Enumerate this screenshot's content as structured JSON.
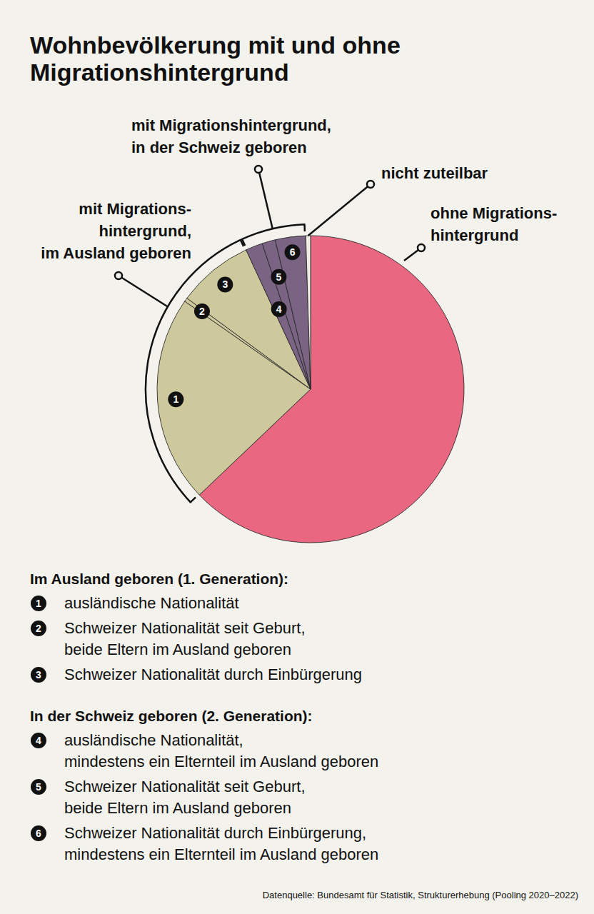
{
  "chart_data": {
    "type": "pie",
    "title": [
      "Wohnbevölkerung mit und ohne",
      "Migrationshintergrund"
    ],
    "categories": [
      null,
      "1",
      "2",
      "3",
      "4",
      "5",
      "6",
      null
    ],
    "values": [
      62.9,
      21.8,
      0.4,
      8.0,
      1.8,
      1.4,
      3.2,
      0.5
    ],
    "colors": [
      "#ea6781",
      "#cdc99c",
      "#cdc99c",
      "#cdc99c",
      "#7b6384",
      "#7b6384",
      "#7b6384",
      "#efede4"
    ],
    "descriptions": [
      null,
      [
        "ausländische Nationalität"
      ],
      [
        "Schweizer Nationalität seit Geburt,",
        "beide Eltern im Ausland geboren"
      ],
      [
        "Schweizer Nationalität durch Einbürgerung"
      ],
      [
        "ausländische Nationalität,",
        "mindestens ein Elternteil im Ausland geboren"
      ],
      [
        "Schweizer Nationalität seit Geburt,",
        "beide Eltern im Ausland geboren"
      ],
      [
        "Schweizer Nationalität durch Einbürgerung,",
        "mindestens ein Elternteil im Ausland geboren"
      ],
      null
    ],
    "callouts": [
      {
        "label": [
          "ohne Migrations-",
          "hintergrund"
        ],
        "members": [
          0
        ]
      },
      {
        "label": [
          "nicht zuteilbar"
        ],
        "members": [
          7
        ]
      },
      {
        "label": [
          "mit Migrationshintergrund,",
          "in der Schweiz geboren"
        ],
        "members": [
          4,
          5,
          6
        ]
      },
      {
        "label": [
          "mit Migrations-",
          "hintergrund,",
          "im Ausland geboren"
        ],
        "members": [
          1,
          2,
          3
        ]
      }
    ],
    "sections": [
      {
        "title": "Im Ausland geboren (1. Generation):",
        "members": [
          1,
          2,
          3
        ]
      },
      {
        "title": "In der Schweiz geboren (2. Generation):",
        "members": [
          4,
          5,
          6
        ]
      }
    ],
    "source": "Datenquelle: Bundesamt für Statistik, Strukturerhebung (Pooling 2020–2022)"
  }
}
